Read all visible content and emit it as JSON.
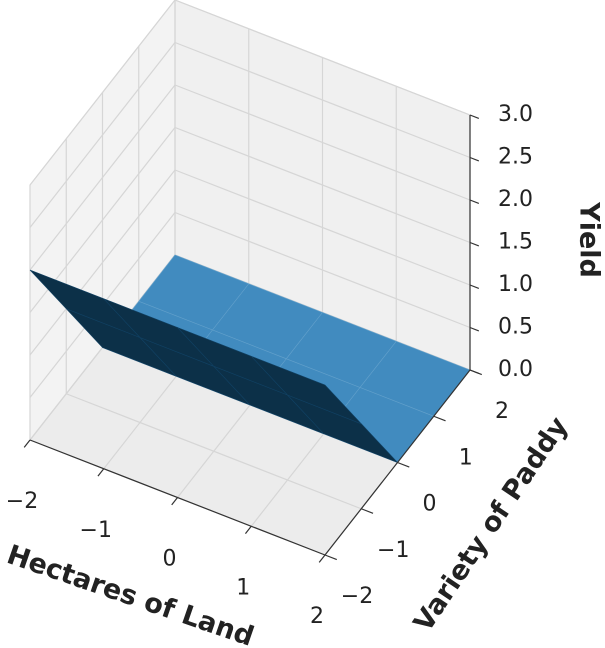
{
  "chart_data": {
    "type": "surface3d",
    "xlabel": "Hectares of Land",
    "ylabel": "Variety of Paddy",
    "zlabel": "Yield",
    "x": [
      -2,
      -1,
      0,
      1,
      2
    ],
    "y": [
      -2,
      -1,
      0,
      1,
      2
    ],
    "z": [
      [
        2,
        2,
        2,
        2,
        2
      ],
      [
        1,
        1,
        1,
        1,
        1
      ],
      [
        0,
        0,
        0,
        0,
        0
      ],
      [
        0,
        0,
        0,
        0,
        0
      ],
      [
        0,
        0,
        0,
        0,
        0
      ]
    ],
    "color": "#1f77b4",
    "xlim": [
      -2,
      2
    ],
    "ylim": [
      -2,
      2
    ],
    "zlim": [
      0,
      3
    ],
    "xticks": [
      {
        "value": -2,
        "label": "−2"
      },
      {
        "value": -1,
        "label": "−1"
      },
      0,
      1,
      2
    ],
    "yticks": [
      {
        "value": -2,
        "label": "−2"
      },
      {
        "value": -1,
        "label": "−1"
      },
      0,
      1,
      2
    ],
    "zticks": [
      {
        "value": 0,
        "label": "0.0"
      },
      0.5,
      {
        "value": 1,
        "label": "1.0"
      },
      1.5,
      {
        "value": 2,
        "label": "2.0"
      },
      2.5,
      {
        "value": 3,
        "label": "3.0"
      }
    ],
    "grid": true
  }
}
